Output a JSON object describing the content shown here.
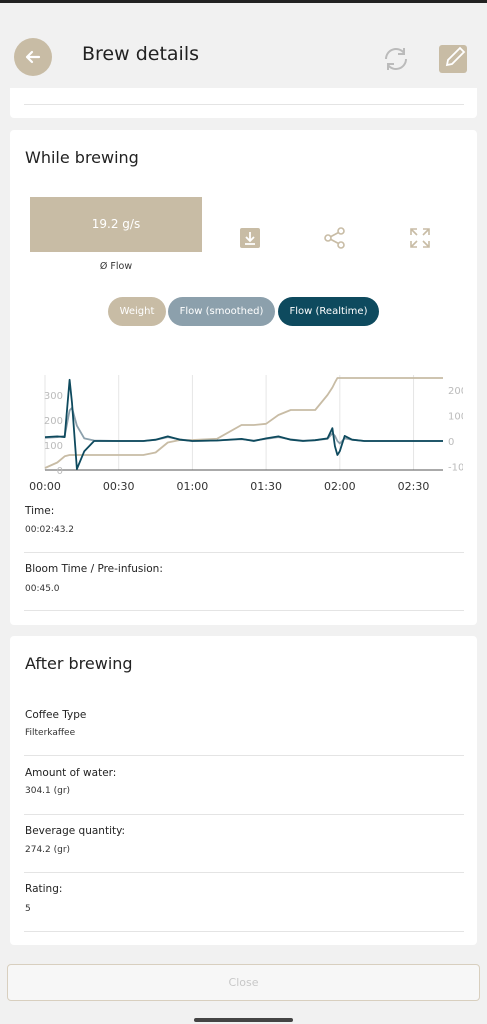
{
  "header": {
    "title": "Brew details"
  },
  "while_brewing": {
    "title": "While brewing",
    "flow_tile": {
      "value": "19.2 g/s",
      "label": "Ø Flow"
    },
    "toggles": [
      "Weight",
      "Flow (smoothed)",
      "Flow (Realtime)"
    ],
    "fields": [
      {
        "label": "Time:",
        "value": "00:02:43.2"
      },
      {
        "label": "Bloom Time / Pre-infusion:",
        "value": "00:45.0"
      }
    ]
  },
  "chart_data": {
    "type": "line",
    "x": [
      0,
      5,
      8,
      10,
      11,
      13,
      16,
      20,
      30,
      40,
      45,
      50,
      55,
      60,
      70,
      80,
      85,
      90,
      95,
      100,
      105,
      110,
      115,
      117,
      118,
      119,
      120,
      122,
      125,
      130,
      140,
      150,
      162
    ],
    "series": [
      {
        "name": "Weight",
        "color": "#c8bca5",
        "axis": "y",
        "values": [
          8,
          30,
          55,
          60,
          60,
          60,
          60,
          60,
          60,
          60,
          70,
          110,
          120,
          120,
          125,
          180,
          180,
          185,
          220,
          240,
          240,
          240,
          300,
          330,
          350,
          368,
          368,
          368,
          368,
          368,
          368,
          368,
          368
        ]
      },
      {
        "name": "Flow (smoothed)",
        "color": "#8ca0ac",
        "axis": "y2",
        "values": [
          12,
          15,
          20,
          120,
          130,
          60,
          10,
          2,
          0,
          0,
          4,
          15,
          6,
          0,
          2,
          7,
          2,
          8,
          15,
          6,
          1,
          3,
          8,
          30,
          20,
          0,
          -10,
          10,
          5,
          0,
          0,
          0,
          0
        ]
      },
      {
        "name": "Flow (Realtime)",
        "color": "#0e4a5e",
        "axis": "y2",
        "values": [
          15,
          18,
          15,
          240,
          150,
          -110,
          -40,
          0,
          0,
          0,
          5,
          18,
          5,
          0,
          2,
          8,
          0,
          10,
          18,
          5,
          0,
          3,
          10,
          50,
          -20,
          -55,
          -40,
          20,
          5,
          0,
          0,
          0,
          0
        ]
      }
    ],
    "xlim": [
      0,
      162
    ],
    "xticks": [
      {
        "value": 0,
        "label": "00:00"
      },
      {
        "value": 30,
        "label": "00:30"
      },
      {
        "value": 60,
        "label": "01:00"
      },
      {
        "value": 90,
        "label": "01:30"
      },
      {
        "value": 120,
        "label": "02:00"
      },
      {
        "value": 150,
        "label": "02:30"
      }
    ],
    "ylim": [
      0,
      380
    ],
    "yticks": [
      0,
      100,
      200,
      300
    ],
    "y2lim": [
      -114,
      259
    ],
    "y2ticks": [
      -100,
      0,
      100,
      200
    ],
    "grid": true
  },
  "after_brewing": {
    "title": "After brewing",
    "fields": [
      {
        "label": "Coffee Type",
        "value": "Filterkaffee"
      },
      {
        "label": "Amount of water:",
        "value": "304.1 (gr)"
      },
      {
        "label": "Beverage quantity:",
        "value": "274.2 (gr)"
      },
      {
        "label": "Rating:",
        "value": "5"
      }
    ]
  },
  "close": "Close"
}
